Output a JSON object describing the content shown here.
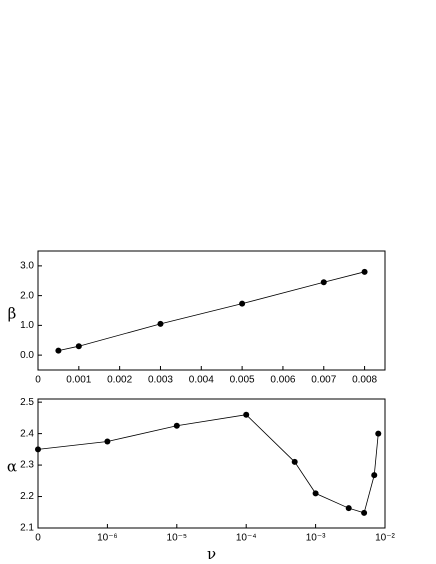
{
  "chart_data": [
    {
      "type": "line",
      "ylabel": "β",
      "x": [
        0.0005,
        0.001,
        0.003,
        0.005,
        0.007,
        0.008
      ],
      "values": [
        0.15,
        0.3,
        1.05,
        1.73,
        2.45,
        2.8
      ],
      "color": "#000000",
      "xlim": [
        0,
        0.0085
      ],
      "xticks": [
        0,
        0.001,
        0.002,
        0.003,
        0.004,
        0.005,
        0.006,
        0.007,
        0.008
      ],
      "ylim": [
        -0.5,
        3.5
      ],
      "yticks": [
        {
          "value": 0,
          "label": "0.0"
        },
        {
          "value": 1,
          "label": "1.0"
        },
        {
          "value": 2,
          "label": "2.0"
        },
        {
          "value": 3,
          "label": "3.0"
        }
      ]
    },
    {
      "type": "line",
      "ylabel": "α",
      "xlabel": "ν",
      "xscale": "log",
      "x": [
        0,
        1e-06,
        1e-05,
        0.0001,
        0.0005,
        0.001,
        0.003,
        0.005,
        0.007,
        0.008
      ],
      "values": [
        2.35,
        2.375,
        2.425,
        2.46,
        2.31,
        2.21,
        2.163,
        2.148,
        2.268,
        2.4
      ],
      "color": "#000000",
      "xlim": [
        0,
        0.01
      ],
      "xticks": [
        0,
        {
          "value": 1e-06,
          "label": "10⁻⁶"
        },
        {
          "value": 1e-05,
          "label": "10⁻⁵"
        },
        {
          "value": 0.0001,
          "label": "10⁻⁴"
        },
        {
          "value": 0.001,
          "label": "10⁻³"
        },
        {
          "value": 0.01,
          "label": "10⁻²"
        }
      ],
      "ylim": [
        2.1,
        2.51
      ],
      "yticks": [
        2.1,
        2.2,
        2.3,
        2.4,
        2.5
      ]
    }
  ]
}
